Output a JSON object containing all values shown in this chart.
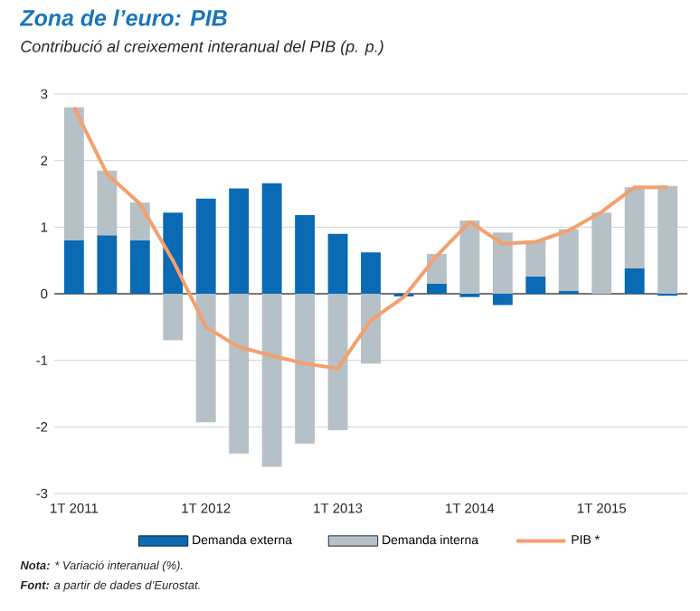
{
  "chart_data": {
    "type": "bar",
    "title": "Zona de l’euro: PIB",
    "subtitle": "Contribució al creixement interanual del PIB (p. p.)",
    "categories": [
      "1T 2011",
      null,
      null,
      null,
      "1T 2012",
      null,
      null,
      null,
      "1T 2013",
      null,
      null,
      null,
      "1T 2014",
      null,
      null,
      null,
      "1T 2015",
      null,
      null
    ],
    "series": [
      {
        "name": "Demanda externa",
        "color": "#0a6ab4",
        "values": [
          0.8,
          0.88,
          0.8,
          1.22,
          1.43,
          1.58,
          1.66,
          1.18,
          0.9,
          0.62,
          -0.04,
          0.15,
          -0.05,
          -0.17,
          0.26,
          0.04,
          0.0,
          0.38,
          -0.03
        ]
      },
      {
        "name": "Demanda interna",
        "color": "#b5c1c6",
        "values": [
          2.0,
          0.97,
          0.57,
          -0.7,
          -1.93,
          -2.4,
          -2.6,
          -2.25,
          -2.05,
          -1.05,
          0.0,
          0.45,
          1.1,
          0.92,
          0.54,
          0.93,
          1.22,
          1.22,
          1.62
        ]
      },
      {
        "name": "PIB *",
        "type": "line",
        "color": "#f4a06e",
        "values": [
          2.8,
          1.8,
          1.35,
          0.5,
          -0.5,
          -0.8,
          -0.93,
          -1.05,
          -1.12,
          -0.4,
          -0.05,
          0.57,
          1.08,
          0.75,
          0.78,
          0.95,
          1.23,
          1.6,
          1.6
        ]
      }
    ],
    "stacked": true,
    "ylim": [
      -3,
      3
    ],
    "yticks": [
      -3,
      -2,
      -1,
      0,
      1,
      2,
      3
    ],
    "grid": "y",
    "legend": "bottom",
    "annotations": [
      "**Nota:** * Variació interanual (%).",
      "**Font:** a partir de dades d’Eurostat."
    ]
  }
}
